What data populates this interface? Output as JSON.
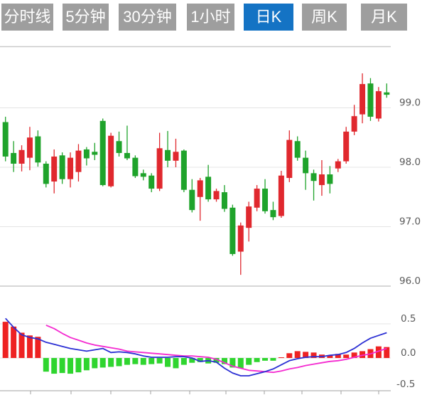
{
  "toolbar": {
    "tabs": [
      {
        "label": "分时线",
        "active": false
      },
      {
        "label": "5分钟",
        "active": false
      },
      {
        "label": "30分钟",
        "active": false
      },
      {
        "label": "1小时",
        "active": false
      },
      {
        "label": "日K",
        "active": true
      },
      {
        "label": "周K",
        "active": false
      },
      {
        "label": "月K",
        "active": false
      }
    ],
    "active_color": "#1473c4",
    "inactive_color": "#9e9e9e",
    "text_color": "#ffffff"
  },
  "chart_data": {
    "type": "candlestick",
    "title": "",
    "panels": [
      "price-candles",
      "macd"
    ],
    "price_axis": {
      "labels": [
        "99.0",
        "98.0",
        "97.0",
        "96.0"
      ],
      "values": [
        99.0,
        98.0,
        97.0,
        96.0
      ],
      "side": "right"
    },
    "macd_axis": {
      "labels": [
        "0.5",
        "0.0",
        "-0.5"
      ],
      "values": [
        0.5,
        0.0,
        -0.5
      ],
      "side": "right"
    },
    "colors": {
      "candle_up": "#e0282e",
      "candle_down": "#1fa32b",
      "macd_bar_up": "#ee2222",
      "macd_bar_down": "#2fd52f",
      "dif_line": "#2b2fd4",
      "dea_line": "#f42ad0",
      "grid_light": "#e4e4e4",
      "grid_dark": "#c9c9c9",
      "axis_line": "#a0a0a0",
      "axis_text": "#5a5a5a"
    },
    "candles": [
      {
        "o": 98.76,
        "h": 98.85,
        "l": 98.1,
        "c": 98.18
      },
      {
        "o": 98.24,
        "h": 98.44,
        "l": 97.92,
        "c": 98.06
      },
      {
        "o": 98.06,
        "h": 98.37,
        "l": 97.93,
        "c": 98.29
      },
      {
        "o": 98.16,
        "h": 98.68,
        "l": 97.95,
        "c": 98.5
      },
      {
        "o": 98.52,
        "h": 98.62,
        "l": 98.01,
        "c": 98.08
      },
      {
        "o": 98.06,
        "h": 98.1,
        "l": 97.66,
        "c": 97.72
      },
      {
        "o": 97.76,
        "h": 98.3,
        "l": 97.56,
        "c": 98.18
      },
      {
        "o": 98.2,
        "h": 98.25,
        "l": 97.72,
        "c": 97.8
      },
      {
        "o": 97.8,
        "h": 98.25,
        "l": 97.66,
        "c": 98.16
      },
      {
        "o": 97.92,
        "h": 98.39,
        "l": 97.76,
        "c": 98.28
      },
      {
        "o": 98.3,
        "h": 98.34,
        "l": 98.03,
        "c": 98.15
      },
      {
        "o": 98.26,
        "h": 98.41,
        "l": 98.12,
        "c": 98.21
      },
      {
        "o": 98.78,
        "h": 98.82,
        "l": 97.68,
        "c": 97.7
      },
      {
        "o": 97.68,
        "h": 98.58,
        "l": 97.66,
        "c": 98.53
      },
      {
        "o": 98.44,
        "h": 98.6,
        "l": 98.18,
        "c": 98.24
      },
      {
        "o": 98.24,
        "h": 98.7,
        "l": 98.12,
        "c": 98.15
      },
      {
        "o": 98.16,
        "h": 98.2,
        "l": 97.82,
        "c": 97.85
      },
      {
        "o": 97.9,
        "h": 97.96,
        "l": 97.78,
        "c": 97.84
      },
      {
        "o": 97.86,
        "h": 97.9,
        "l": 97.58,
        "c": 97.64
      },
      {
        "o": 97.64,
        "h": 98.58,
        "l": 97.6,
        "c": 98.32
      },
      {
        "o": 98.29,
        "h": 98.61,
        "l": 98.0,
        "c": 98.11
      },
      {
        "o": 98.11,
        "h": 98.48,
        "l": 98.0,
        "c": 98.26
      },
      {
        "o": 98.28,
        "h": 98.3,
        "l": 97.58,
        "c": 97.62
      },
      {
        "o": 97.62,
        "h": 97.8,
        "l": 97.24,
        "c": 97.28
      },
      {
        "o": 97.5,
        "h": 97.82,
        "l": 97.1,
        "c": 97.78
      },
      {
        "o": 97.84,
        "h": 98.04,
        "l": 97.42,
        "c": 97.46
      },
      {
        "o": 97.46,
        "h": 97.64,
        "l": 97.42,
        "c": 97.6
      },
      {
        "o": 97.58,
        "h": 97.7,
        "l": 97.25,
        "c": 97.3
      },
      {
        "o": 97.32,
        "h": 97.37,
        "l": 96.51,
        "c": 96.54
      },
      {
        "o": 96.58,
        "h": 97.07,
        "l": 96.19,
        "c": 97.02
      },
      {
        "o": 96.98,
        "h": 97.42,
        "l": 96.75,
        "c": 97.34
      },
      {
        "o": 97.32,
        "h": 97.7,
        "l": 97.26,
        "c": 97.64
      },
      {
        "o": 97.64,
        "h": 97.8,
        "l": 97.22,
        "c": 97.26
      },
      {
        "o": 97.28,
        "h": 97.42,
        "l": 97.11,
        "c": 97.16
      },
      {
        "o": 97.18,
        "h": 97.94,
        "l": 97.15,
        "c": 97.86
      },
      {
        "o": 97.82,
        "h": 98.62,
        "l": 97.75,
        "c": 98.46
      },
      {
        "o": 98.44,
        "h": 98.52,
        "l": 98.11,
        "c": 98.16
      },
      {
        "o": 98.16,
        "h": 98.28,
        "l": 97.62,
        "c": 97.9
      },
      {
        "o": 97.9,
        "h": 97.96,
        "l": 97.44,
        "c": 97.77
      },
      {
        "o": 97.7,
        "h": 98.12,
        "l": 97.52,
        "c": 97.88
      },
      {
        "o": 97.88,
        "h": 98.02,
        "l": 97.56,
        "c": 97.72
      },
      {
        "o": 97.98,
        "h": 98.14,
        "l": 97.92,
        "c": 98.1
      },
      {
        "o": 98.1,
        "h": 98.68,
        "l": 98.06,
        "c": 98.6
      },
      {
        "o": 98.6,
        "h": 99.05,
        "l": 98.54,
        "c": 98.86
      },
      {
        "o": 98.89,
        "h": 99.58,
        "l": 98.74,
        "c": 99.4
      },
      {
        "o": 99.41,
        "h": 99.5,
        "l": 98.78,
        "c": 98.85
      },
      {
        "o": 98.82,
        "h": 99.35,
        "l": 98.77,
        "c": 99.28
      },
      {
        "o": 99.26,
        "h": 99.41,
        "l": 99.17,
        "c": 99.22
      }
    ],
    "macd": {
      "histogram": [
        0.53,
        0.46,
        0.37,
        0.33,
        0.31,
        -0.2,
        -0.23,
        -0.22,
        -0.23,
        -0.21,
        -0.18,
        -0.15,
        -0.14,
        -0.13,
        -0.12,
        -0.1,
        -0.09,
        -0.1,
        -0.09,
        -0.08,
        -0.13,
        -0.15,
        -0.1,
        -0.07,
        -0.06,
        -0.08,
        -0.07,
        -0.09,
        -0.14,
        -0.15,
        -0.1,
        -0.06,
        -0.04,
        -0.04,
        0.01,
        0.07,
        0.1,
        0.09,
        0.08,
        0.05,
        0.04,
        0.06,
        0.05,
        0.08,
        0.1,
        0.13,
        0.17,
        0.16
      ],
      "dif": [
        0.58,
        0.45,
        0.34,
        0.3,
        0.28,
        0.23,
        0.2,
        0.17,
        0.14,
        0.12,
        0.1,
        0.12,
        0.14,
        0.08,
        0.09,
        0.08,
        0.06,
        0.03,
        0.01,
        0.01,
        0.01,
        0.02,
        0.02,
        0.0,
        -0.05,
        -0.04,
        -0.06,
        -0.15,
        -0.22,
        -0.26,
        -0.26,
        -0.23,
        -0.2,
        -0.16,
        -0.1,
        -0.04,
        -0.01,
        0.01,
        0.02,
        0.02,
        0.04,
        0.05,
        0.08,
        0.14,
        0.22,
        0.29,
        0.33,
        0.37
      ],
      "dea": [
        null,
        null,
        null,
        null,
        null,
        0.48,
        0.43,
        0.36,
        0.3,
        0.26,
        0.22,
        0.19,
        0.17,
        0.15,
        0.13,
        0.1,
        0.09,
        0.08,
        0.07,
        0.06,
        0.05,
        0.04,
        0.03,
        0.03,
        0.02,
        0.01,
        -0.02,
        -0.07,
        -0.12,
        -0.15,
        -0.18,
        -0.19,
        -0.2,
        -0.21,
        -0.19,
        -0.16,
        -0.14,
        -0.11,
        -0.09,
        -0.07,
        -0.05,
        -0.04,
        -0.02,
        0.01,
        0.04,
        0.06,
        0.1,
        0.14
      ]
    },
    "layout_hints": {
      "grid": "horizontal-only",
      "legend": "none",
      "x_tick_count": 10
    }
  }
}
